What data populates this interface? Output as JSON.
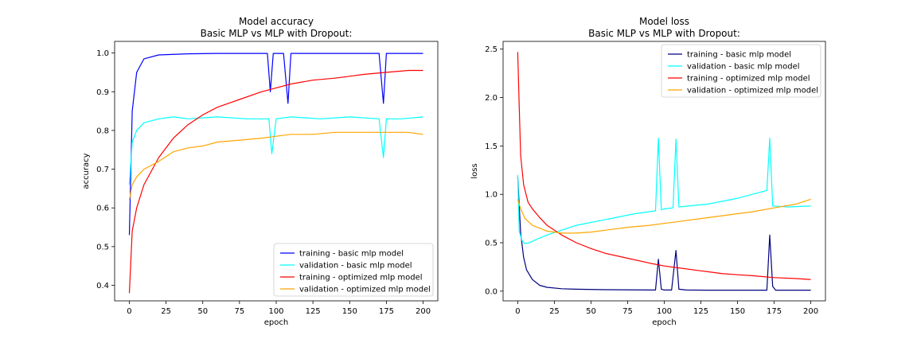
{
  "chart_data": [
    {
      "type": "line",
      "title": "Model accuracy\nBasic MLP vs MLP with Dropout:",
      "title_lines": [
        "Model accuracy",
        "Basic MLP vs MLP with Dropout:"
      ],
      "xlabel": "epoch",
      "ylabel": "accuracy",
      "xlim": [
        -10,
        210
      ],
      "ylim": [
        0.36,
        1.03
      ],
      "xticks": [
        0,
        25,
        50,
        75,
        100,
        125,
        150,
        175,
        200
      ],
      "yticks": [
        0.4,
        0.5,
        0.6,
        0.7,
        0.8,
        0.9,
        1.0
      ],
      "ytick_labels": [
        "0.4",
        "0.5",
        "0.6",
        "0.7",
        "0.8",
        "0.9",
        "1.0"
      ],
      "legend_position": "lower-right",
      "grid": false,
      "series": [
        {
          "name": "training - basic mlp model",
          "color": "#0000ff",
          "x": [
            0,
            2,
            5,
            10,
            20,
            40,
            60,
            90,
            94,
            96,
            98,
            100,
            105,
            108,
            110,
            115,
            130,
            150,
            170,
            173,
            175,
            178,
            190,
            200
          ],
          "y": [
            0.53,
            0.85,
            0.95,
            0.985,
            0.995,
            0.998,
            0.999,
            0.999,
            0.999,
            0.9,
            0.999,
            0.999,
            0.999,
            0.87,
            0.999,
            0.999,
            0.999,
            0.999,
            0.999,
            0.87,
            0.999,
            0.999,
            0.999,
            0.999
          ]
        },
        {
          "name": "validation - basic mlp model",
          "color": "#00ffff",
          "x": [
            0,
            2,
            5,
            10,
            20,
            30,
            40,
            60,
            80,
            95,
            97,
            100,
            110,
            130,
            150,
            170,
            173,
            175,
            185,
            200
          ],
          "y": [
            0.66,
            0.77,
            0.8,
            0.82,
            0.83,
            0.835,
            0.83,
            0.835,
            0.83,
            0.83,
            0.74,
            0.83,
            0.835,
            0.83,
            0.835,
            0.83,
            0.73,
            0.83,
            0.83,
            0.835
          ]
        },
        {
          "name": "training - optimized mlp model",
          "color": "#ff0000",
          "x": [
            0,
            2,
            5,
            10,
            20,
            30,
            40,
            50,
            60,
            75,
            90,
            100,
            110,
            125,
            140,
            150,
            160,
            175,
            190,
            200
          ],
          "y": [
            0.38,
            0.54,
            0.6,
            0.66,
            0.73,
            0.78,
            0.815,
            0.84,
            0.86,
            0.88,
            0.9,
            0.91,
            0.92,
            0.93,
            0.935,
            0.94,
            0.945,
            0.95,
            0.955,
            0.955
          ]
        },
        {
          "name": "validation - optimized mlp model",
          "color": "#ffa500",
          "x": [
            0,
            2,
            5,
            10,
            20,
            30,
            40,
            50,
            60,
            75,
            90,
            100,
            110,
            125,
            140,
            150,
            160,
            175,
            190,
            200
          ],
          "y": [
            0.62,
            0.66,
            0.68,
            0.7,
            0.72,
            0.745,
            0.755,
            0.76,
            0.77,
            0.775,
            0.78,
            0.785,
            0.79,
            0.79,
            0.795,
            0.795,
            0.795,
            0.795,
            0.795,
            0.79
          ]
        }
      ]
    },
    {
      "type": "line",
      "title": "Model loss\nBasic MLP vs MLP with Dropout:",
      "title_lines": [
        "Model loss",
        "Basic MLP vs MLP with Dropout:"
      ],
      "xlabel": "epoch",
      "ylabel": "loss",
      "xlim": [
        -10,
        210
      ],
      "ylim": [
        -0.1,
        2.58
      ],
      "xticks": [
        0,
        25,
        50,
        75,
        100,
        125,
        150,
        175,
        200
      ],
      "yticks": [
        0.0,
        0.5,
        1.0,
        1.5,
        2.0,
        2.5
      ],
      "ytick_labels": [
        "0.0",
        "0.5",
        "1.0",
        "1.5",
        "2.0",
        "2.5"
      ],
      "legend_position": "upper-right",
      "grid": false,
      "series": [
        {
          "name": "training - basic mlp model",
          "color": "#000080",
          "x": [
            0,
            2,
            4,
            6,
            10,
            15,
            20,
            30,
            40,
            60,
            90,
            94,
            96,
            98,
            100,
            105,
            108,
            110,
            115,
            130,
            150,
            170,
            172,
            174,
            176,
            190,
            200
          ],
          "y": [
            1.18,
            0.6,
            0.35,
            0.22,
            0.12,
            0.06,
            0.04,
            0.025,
            0.02,
            0.015,
            0.012,
            0.012,
            0.33,
            0.02,
            0.012,
            0.012,
            0.42,
            0.02,
            0.012,
            0.01,
            0.01,
            0.01,
            0.58,
            0.05,
            0.01,
            0.01,
            0.01
          ]
        },
        {
          "name": "validation - basic mlp model",
          "color": "#00ffff",
          "x": [
            0,
            1,
            3,
            5,
            8,
            12,
            20,
            30,
            40,
            60,
            80,
            94,
            96,
            98,
            100,
            106,
            108,
            110,
            130,
            150,
            170,
            172,
            174,
            185,
            200
          ],
          "y": [
            1.2,
            0.62,
            0.52,
            0.49,
            0.5,
            0.53,
            0.58,
            0.63,
            0.68,
            0.74,
            0.8,
            0.83,
            1.58,
            0.84,
            0.85,
            0.86,
            1.57,
            0.87,
            0.9,
            0.96,
            1.04,
            1.58,
            0.88,
            0.87,
            0.88
          ]
        },
        {
          "name": "training - optimized mlp model",
          "color": "#ff0000",
          "x": [
            0,
            1,
            2,
            4,
            7,
            10,
            15,
            20,
            30,
            40,
            50,
            60,
            75,
            90,
            100,
            110,
            125,
            140,
            150,
            160,
            175,
            190,
            200
          ],
          "y": [
            2.47,
            1.9,
            1.4,
            1.1,
            0.92,
            0.85,
            0.76,
            0.68,
            0.58,
            0.5,
            0.44,
            0.39,
            0.34,
            0.29,
            0.26,
            0.24,
            0.21,
            0.18,
            0.17,
            0.16,
            0.14,
            0.13,
            0.12
          ]
        },
        {
          "name": "validation - optimized mlp model",
          "color": "#ffa500",
          "x": [
            0,
            2,
            5,
            10,
            20,
            30,
            40,
            50,
            60,
            75,
            90,
            100,
            110,
            125,
            140,
            150,
            160,
            175,
            190,
            200
          ],
          "y": [
            0.95,
            0.85,
            0.75,
            0.68,
            0.62,
            0.6,
            0.6,
            0.61,
            0.63,
            0.66,
            0.68,
            0.7,
            0.72,
            0.75,
            0.78,
            0.8,
            0.82,
            0.86,
            0.9,
            0.95
          ]
        }
      ]
    }
  ]
}
